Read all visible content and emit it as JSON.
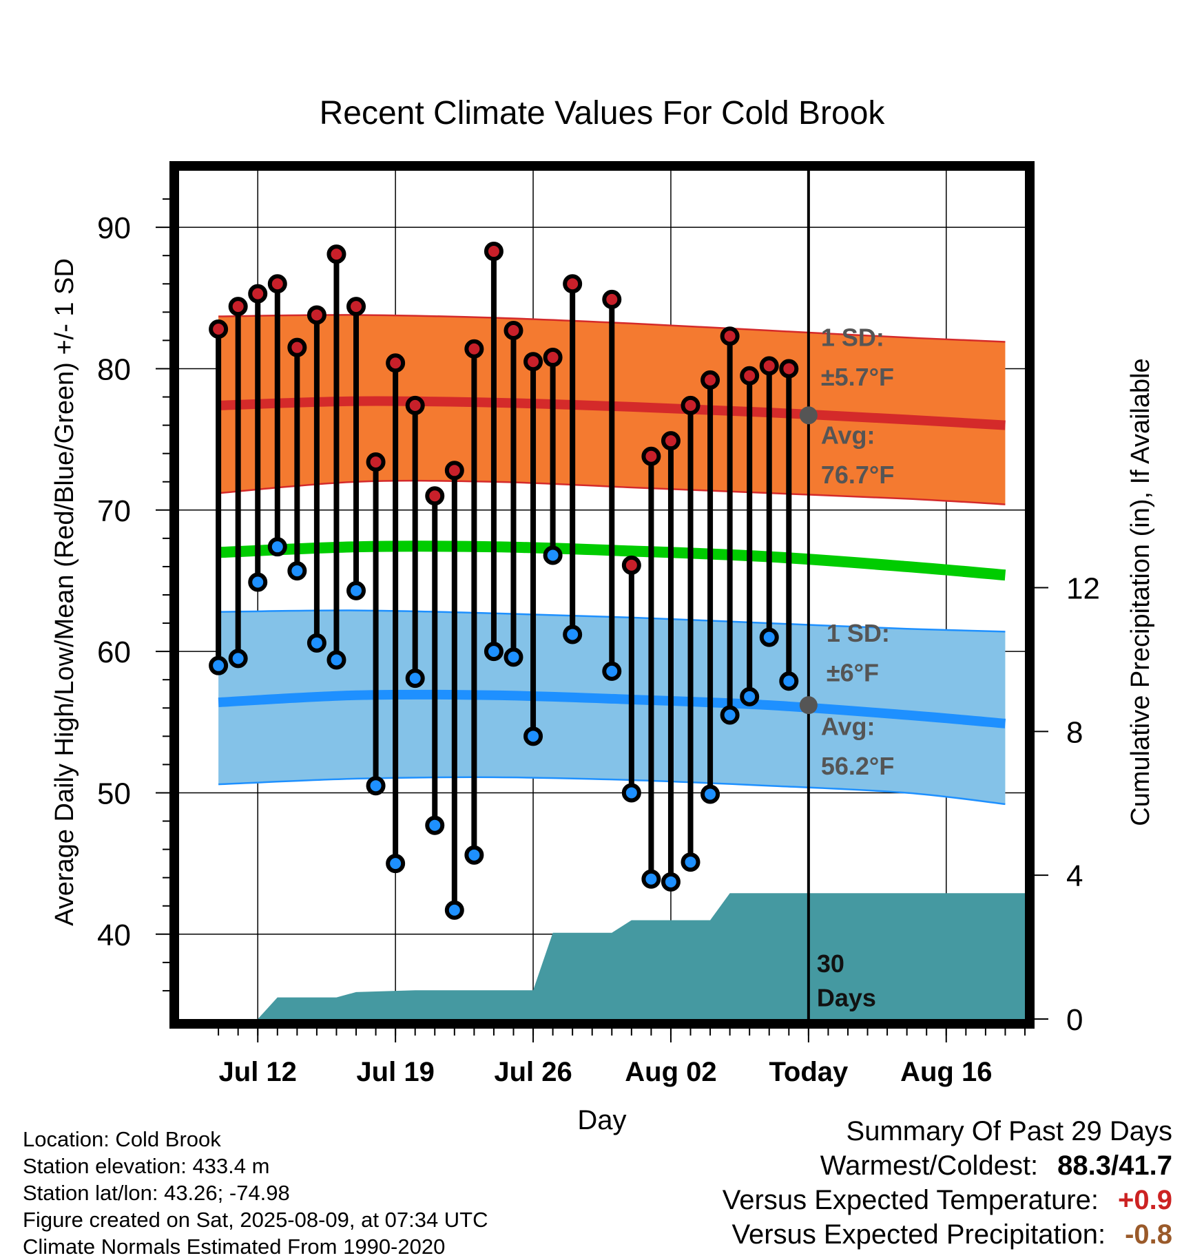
{
  "chart_data": {
    "type": "line",
    "title": "Recent Climate Values For Cold Brook",
    "xlabel": "Day",
    "ylabel": "Average Daily High/Low/Mean (Red/Blue/Green) +/- 1 SD",
    "y2label": "Cumulative Precipitation (in), If Available",
    "ylim": [
      34,
      94
    ],
    "y2lim": [
      0,
      23.6
    ],
    "yticks": [
      40,
      50,
      60,
      70,
      80,
      90
    ],
    "y2ticks": [
      0,
      4,
      8,
      12
    ],
    "x_range": [
      "2025-07-08",
      "2025-08-20"
    ],
    "x_tick_labels": [
      {
        "date": "2025-07-12",
        "label": "Jul 12"
      },
      {
        "date": "2025-07-19",
        "label": "Jul 19"
      },
      {
        "date": "2025-07-26",
        "label": "Jul 26"
      },
      {
        "date": "2025-08-02",
        "label": "Aug 02"
      },
      {
        "date": "2025-08-09",
        "label": "Today"
      },
      {
        "date": "2025-08-16",
        "label": "Aug 16"
      }
    ],
    "grid": true,
    "dates": [
      "2025-07-10",
      "2025-07-11",
      "2025-07-12",
      "2025-07-13",
      "2025-07-14",
      "2025-07-15",
      "2025-07-16",
      "2025-07-17",
      "2025-07-18",
      "2025-07-19",
      "2025-07-20",
      "2025-07-21",
      "2025-07-22",
      "2025-07-23",
      "2025-07-24",
      "2025-07-25",
      "2025-07-26",
      "2025-07-27",
      "2025-07-28",
      "2025-07-29",
      "2025-07-30",
      "2025-07-31",
      "2025-08-01",
      "2025-08-02",
      "2025-08-03",
      "2025-08-04",
      "2025-08-05",
      "2025-08-06",
      "2025-08-07",
      "2025-08-08"
    ],
    "observed_high": [
      82.8,
      84.4,
      85.3,
      86.0,
      81.5,
      83.8,
      88.1,
      84.4,
      73.4,
      80.4,
      77.4,
      71.0,
      72.8,
      81.4,
      88.3,
      82.7,
      80.5,
      80.8,
      86.0,
      null,
      84.9,
      66.1,
      73.8,
      74.9,
      77.4,
      79.2,
      82.3,
      79.5,
      80.2,
      80.0
    ],
    "observed_low": [
      59.0,
      59.5,
      64.9,
      67.4,
      65.7,
      60.6,
      59.4,
      64.3,
      50.5,
      45.0,
      58.1,
      47.7,
      41.7,
      45.6,
      60.0,
      59.6,
      54.0,
      66.8,
      61.2,
      null,
      58.6,
      50.0,
      43.9,
      43.7,
      45.1,
      49.9,
      55.5,
      56.8,
      61.0,
      57.9
    ],
    "normals": {
      "dates": [
        "2025-07-10",
        "2025-07-17",
        "2025-07-24",
        "2025-07-31",
        "2025-08-07",
        "2025-08-14",
        "2025-08-19"
      ],
      "avg_high": [
        77.4,
        77.7,
        77.6,
        77.3,
        76.9,
        76.4,
        76.0
      ],
      "high_sd_upper": [
        83.7,
        83.8,
        83.6,
        83.2,
        82.7,
        82.2,
        81.9
      ],
      "high_sd_lower": [
        71.2,
        72.0,
        72.0,
        71.6,
        71.2,
        70.8,
        70.4
      ],
      "avg_mean": [
        67.0,
        67.4,
        67.4,
        67.1,
        66.7,
        66.0,
        65.4
      ],
      "avg_low": [
        56.4,
        56.9,
        56.9,
        56.6,
        56.2,
        55.5,
        54.9
      ],
      "low_sd_upper": [
        62.8,
        62.9,
        62.7,
        62.4,
        62.0,
        61.6,
        61.4
      ],
      "low_sd_lower": [
        50.6,
        51.0,
        51.1,
        50.9,
        50.5,
        50.0,
        49.2
      ]
    },
    "cumulative_precip": {
      "dates": [
        "2025-07-12",
        "2025-07-13",
        "2025-07-16",
        "2025-07-17",
        "2025-07-20",
        "2025-07-26",
        "2025-07-27",
        "2025-07-30",
        "2025-07-31",
        "2025-08-04",
        "2025-08-05",
        "2025-08-19"
      ],
      "values": [
        0.0,
        0.6,
        0.6,
        0.75,
        0.8,
        0.8,
        2.4,
        2.4,
        2.75,
        2.75,
        3.5,
        3.5
      ]
    },
    "colors": {
      "high_band": "#f47a30",
      "high_line": "#d42a2a",
      "mean_line": "#00cc00",
      "low_band": "#84c2e8",
      "low_line": "#1e90ff",
      "precip": "#4599a1",
      "high_dot": "#c8202a",
      "low_dot": "#1e90ff"
    },
    "annotations": {
      "high_sd_title": "1 SD:",
      "high_sd_value": "±5.7°F",
      "high_avg_title": "Avg:",
      "high_avg_value": "76.7°F",
      "low_sd_title": "1 SD:",
      "low_sd_value": "±6°F",
      "low_avg_title": "Avg:",
      "low_avg_value": "56.2°F",
      "days_line1": "30",
      "days_line2": "Days",
      "today_avg_high": 76.7,
      "today_avg_low": 56.2
    }
  },
  "info": {
    "location": "Location: Cold Brook",
    "elevation": "Station elevation: 433.4 m",
    "latlon": "Station lat/lon: 43.26; -74.98",
    "created": "Figure created on Sat, 2025-08-09, at 07:34 UTC",
    "normals": "Climate Normals Estimated From 1990-2020"
  },
  "summary": {
    "title": "Summary Of Past 29 Days",
    "warmest_label": "Warmest/Coldest:",
    "warmest_value": "88.3/41.7",
    "temp_label": "Versus Expected Temperature:",
    "temp_value": "+0.9",
    "temp_color": "#cc2222",
    "precip_label": "Versus Expected Precipitation:",
    "precip_value": "-0.8",
    "precip_color": "#9a5a2a"
  }
}
